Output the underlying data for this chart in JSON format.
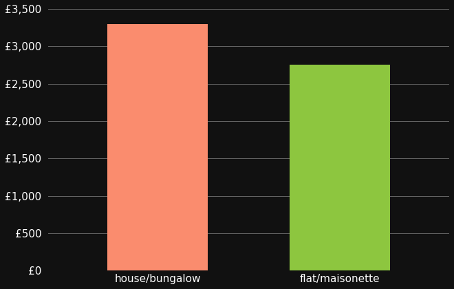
{
  "categories": [
    "house/bungalow",
    "flat/maisonette"
  ],
  "values": [
    3300,
    2750
  ],
  "bar_colors": [
    "#FA8C6E",
    "#8DC63F"
  ],
  "background_color": "#111111",
  "text_color": "#ffffff",
  "ylim": [
    0,
    3500
  ],
  "ytick_step": 500,
  "bar_width": 0.55,
  "ytick_fontsize": 11,
  "xtick_fontsize": 11,
  "grid_color": "#666666",
  "grid_linewidth": 0.7
}
